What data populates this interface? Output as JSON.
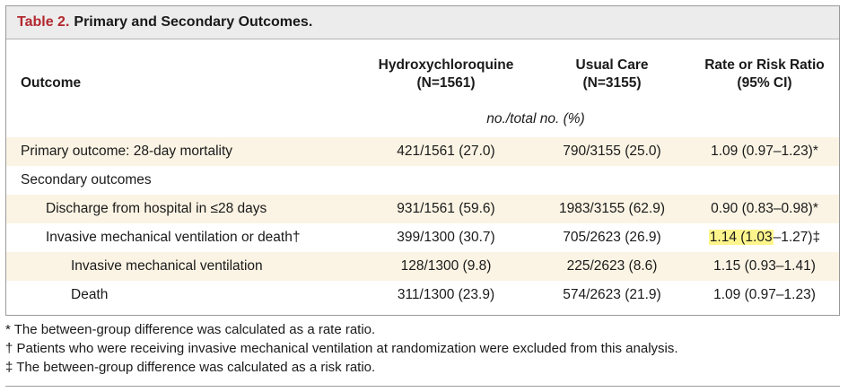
{
  "table": {
    "title_num": "Table 2.",
    "title_text": "Primary and Secondary Outcomes.",
    "headers": {
      "outcome": "Outcome",
      "hcq_line1": "Hydroxychloroquine",
      "hcq_line2": "(N=1561)",
      "uc_line1": "Usual Care",
      "uc_line2": "(N=3155)",
      "rr_line1": "Rate or Risk Ratio",
      "rr_line2": "(95% CI)"
    },
    "units": "no./total no. (%)",
    "rows": [
      {
        "label": "Primary outcome: 28-day mortality",
        "hcq": "421/1561 (27.0)",
        "uc": "790/3155 (25.0)",
        "rr": "1.09 (0.97–1.23)*"
      },
      {
        "label": "Secondary outcomes",
        "hcq": "",
        "uc": "",
        "rr": ""
      },
      {
        "label": "Discharge from hospital in ≤28 days",
        "hcq": "931/1561 (59.6)",
        "uc": "1983/3155 (62.9)",
        "rr": "0.90 (0.83–0.98)*"
      },
      {
        "label": "Invasive mechanical ventilation or death†",
        "hcq": "399/1300 (30.7)",
        "uc": "705/2623 (26.9)",
        "rr_hl": "1.14 (1.03",
        "rr_rest": "–1.27)‡"
      },
      {
        "label": "Invasive mechanical ventilation",
        "hcq": "128/1300 (9.8)",
        "uc": "225/2623 (8.6)",
        "rr": "1.15 (0.93–1.41)"
      },
      {
        "label": "Death",
        "hcq": "311/1300 (23.9)",
        "uc": "574/2623 (21.9)",
        "rr": "1.09 (0.97–1.23)"
      }
    ]
  },
  "footnotes": [
    "* The between-group difference was calculated as a rate ratio.",
    "† Patients who were receiving invasive mechanical ventilation at randomization were excluded from this analysis.",
    "‡ The between-group difference was calculated as a risk ratio."
  ]
}
